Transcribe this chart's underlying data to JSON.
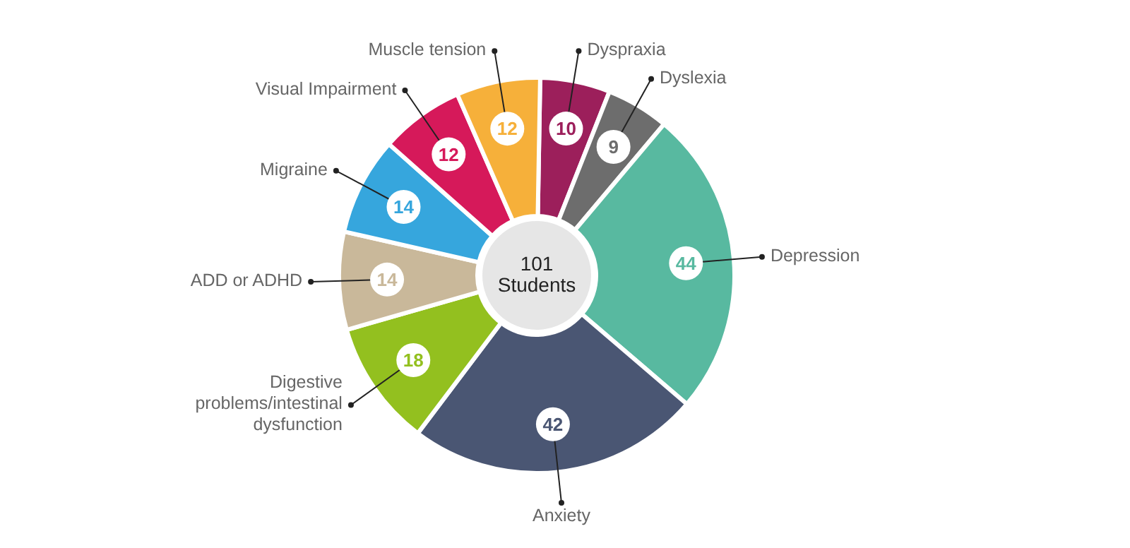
{
  "chart_data": {
    "type": "donut",
    "categories": [
      "Dyspraxia",
      "Dyslexia",
      "Depression",
      "Anxiety",
      "Digestive problems/intestinal dysfunction",
      "ADD or ADHD",
      "Migraine",
      "Visual Impairment",
      "Muscle tension"
    ],
    "values": [
      10,
      9,
      44,
      42,
      18,
      14,
      14,
      12,
      12
    ],
    "colors": [
      "#9c1f5b",
      "#6d6d6d",
      "#58b9a0",
      "#4a5673",
      "#93c01f",
      "#c9b89a",
      "#36a6dd",
      "#d6195a",
      "#f6b03a"
    ],
    "data_labels": true,
    "annotations": [
      "101 Students"
    ]
  }
}
